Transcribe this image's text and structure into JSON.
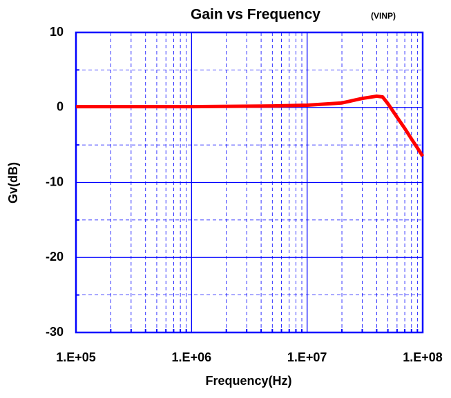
{
  "chart_data": {
    "type": "line",
    "title": "Gain vs Frequency",
    "subtitle": "(VINP)",
    "x_label": "Frequency(Hz)",
    "y_label": "Gv(dB)",
    "x_scale": "log",
    "grid": true,
    "axis_color": "#0000ff",
    "xlim": [
      100000,
      100000000
    ],
    "xticks": [
      {
        "value": 100000,
        "label": "1.E+05"
      },
      {
        "value": 1000000,
        "label": "1.E+06"
      },
      {
        "value": 10000000,
        "label": "1.E+07"
      },
      {
        "value": 100000000,
        "label": "1.E+08"
      }
    ],
    "xminor_ticks": [
      200000,
      300000,
      400000,
      500000,
      600000,
      700000,
      800000,
      900000,
      2000000,
      3000000,
      4000000,
      5000000,
      6000000,
      7000000,
      8000000,
      9000000,
      20000000,
      30000000,
      40000000,
      50000000,
      60000000,
      70000000,
      80000000,
      90000000
    ],
    "ylim": [
      -30,
      10
    ],
    "yticks": [
      -30,
      -20,
      -10,
      0,
      10
    ],
    "yminor_ticks": [
      -25,
      -15,
      -5,
      5
    ],
    "series": [
      {
        "name": "VINP",
        "color": "#ff0000",
        "x": [
          100000,
          1000000,
          5000000,
          10000000,
          20000000,
          30000000,
          40000000,
          45000000,
          50000000,
          60000000,
          70000000,
          80000000,
          90000000,
          100000000
        ],
        "values": [
          0.1,
          0.1,
          0.2,
          0.3,
          0.6,
          1.2,
          1.5,
          1.4,
          0.5,
          -1.3,
          -2.8,
          -4.2,
          -5.4,
          -6.5
        ]
      }
    ]
  }
}
